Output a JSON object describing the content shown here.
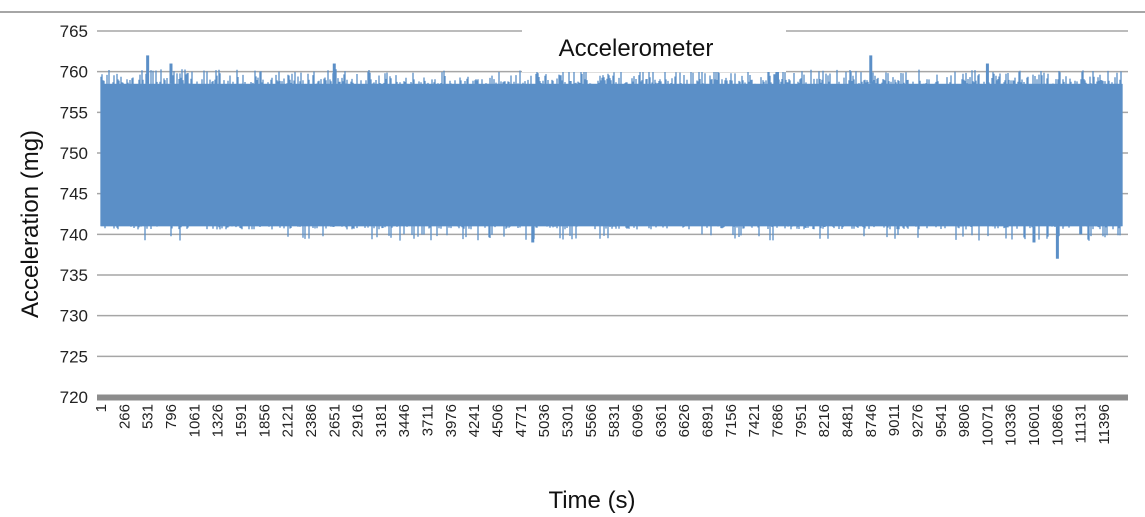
{
  "chart_data": {
    "type": "line",
    "title": "Accelerometer",
    "xlabel": "Time (s)",
    "ylabel": "Acceleration (mg)",
    "ylim": [
      720,
      765
    ],
    "yticks": [
      720,
      725,
      730,
      735,
      740,
      745,
      750,
      755,
      760,
      765
    ],
    "xlim": [
      1,
      11600
    ],
    "xticks": [
      1,
      266,
      531,
      796,
      1061,
      1326,
      1591,
      1856,
      2121,
      2386,
      2651,
      2916,
      3181,
      3446,
      3711,
      3976,
      4241,
      4506,
      4771,
      5036,
      5301,
      5566,
      5831,
      6096,
      6361,
      6626,
      6891,
      7156,
      7421,
      7686,
      7951,
      8216,
      8481,
      8746,
      9011,
      9276,
      9541,
      9806,
      10071,
      10336,
      10601,
      10866,
      11131,
      11396
    ],
    "grid": true,
    "series": [
      {
        "color": "#5b8fc7",
        "band_typical": [
          741,
          758.5
        ],
        "peaks": [
          {
            "x": 531,
            "y": 762
          },
          {
            "x": 796,
            "y": 761
          },
          {
            "x": 2651,
            "y": 761
          },
          {
            "x": 7686,
            "y": 761.5
          },
          {
            "x": 8746,
            "y": 762
          },
          {
            "x": 10071,
            "y": 761
          }
        ],
        "troughs": [
          {
            "x": 4906,
            "y": 739
          },
          {
            "x": 10600,
            "y": 739
          },
          {
            "x": 10866,
            "y": 737
          },
          {
            "x": 11131,
            "y": 740
          }
        ]
      }
    ]
  }
}
